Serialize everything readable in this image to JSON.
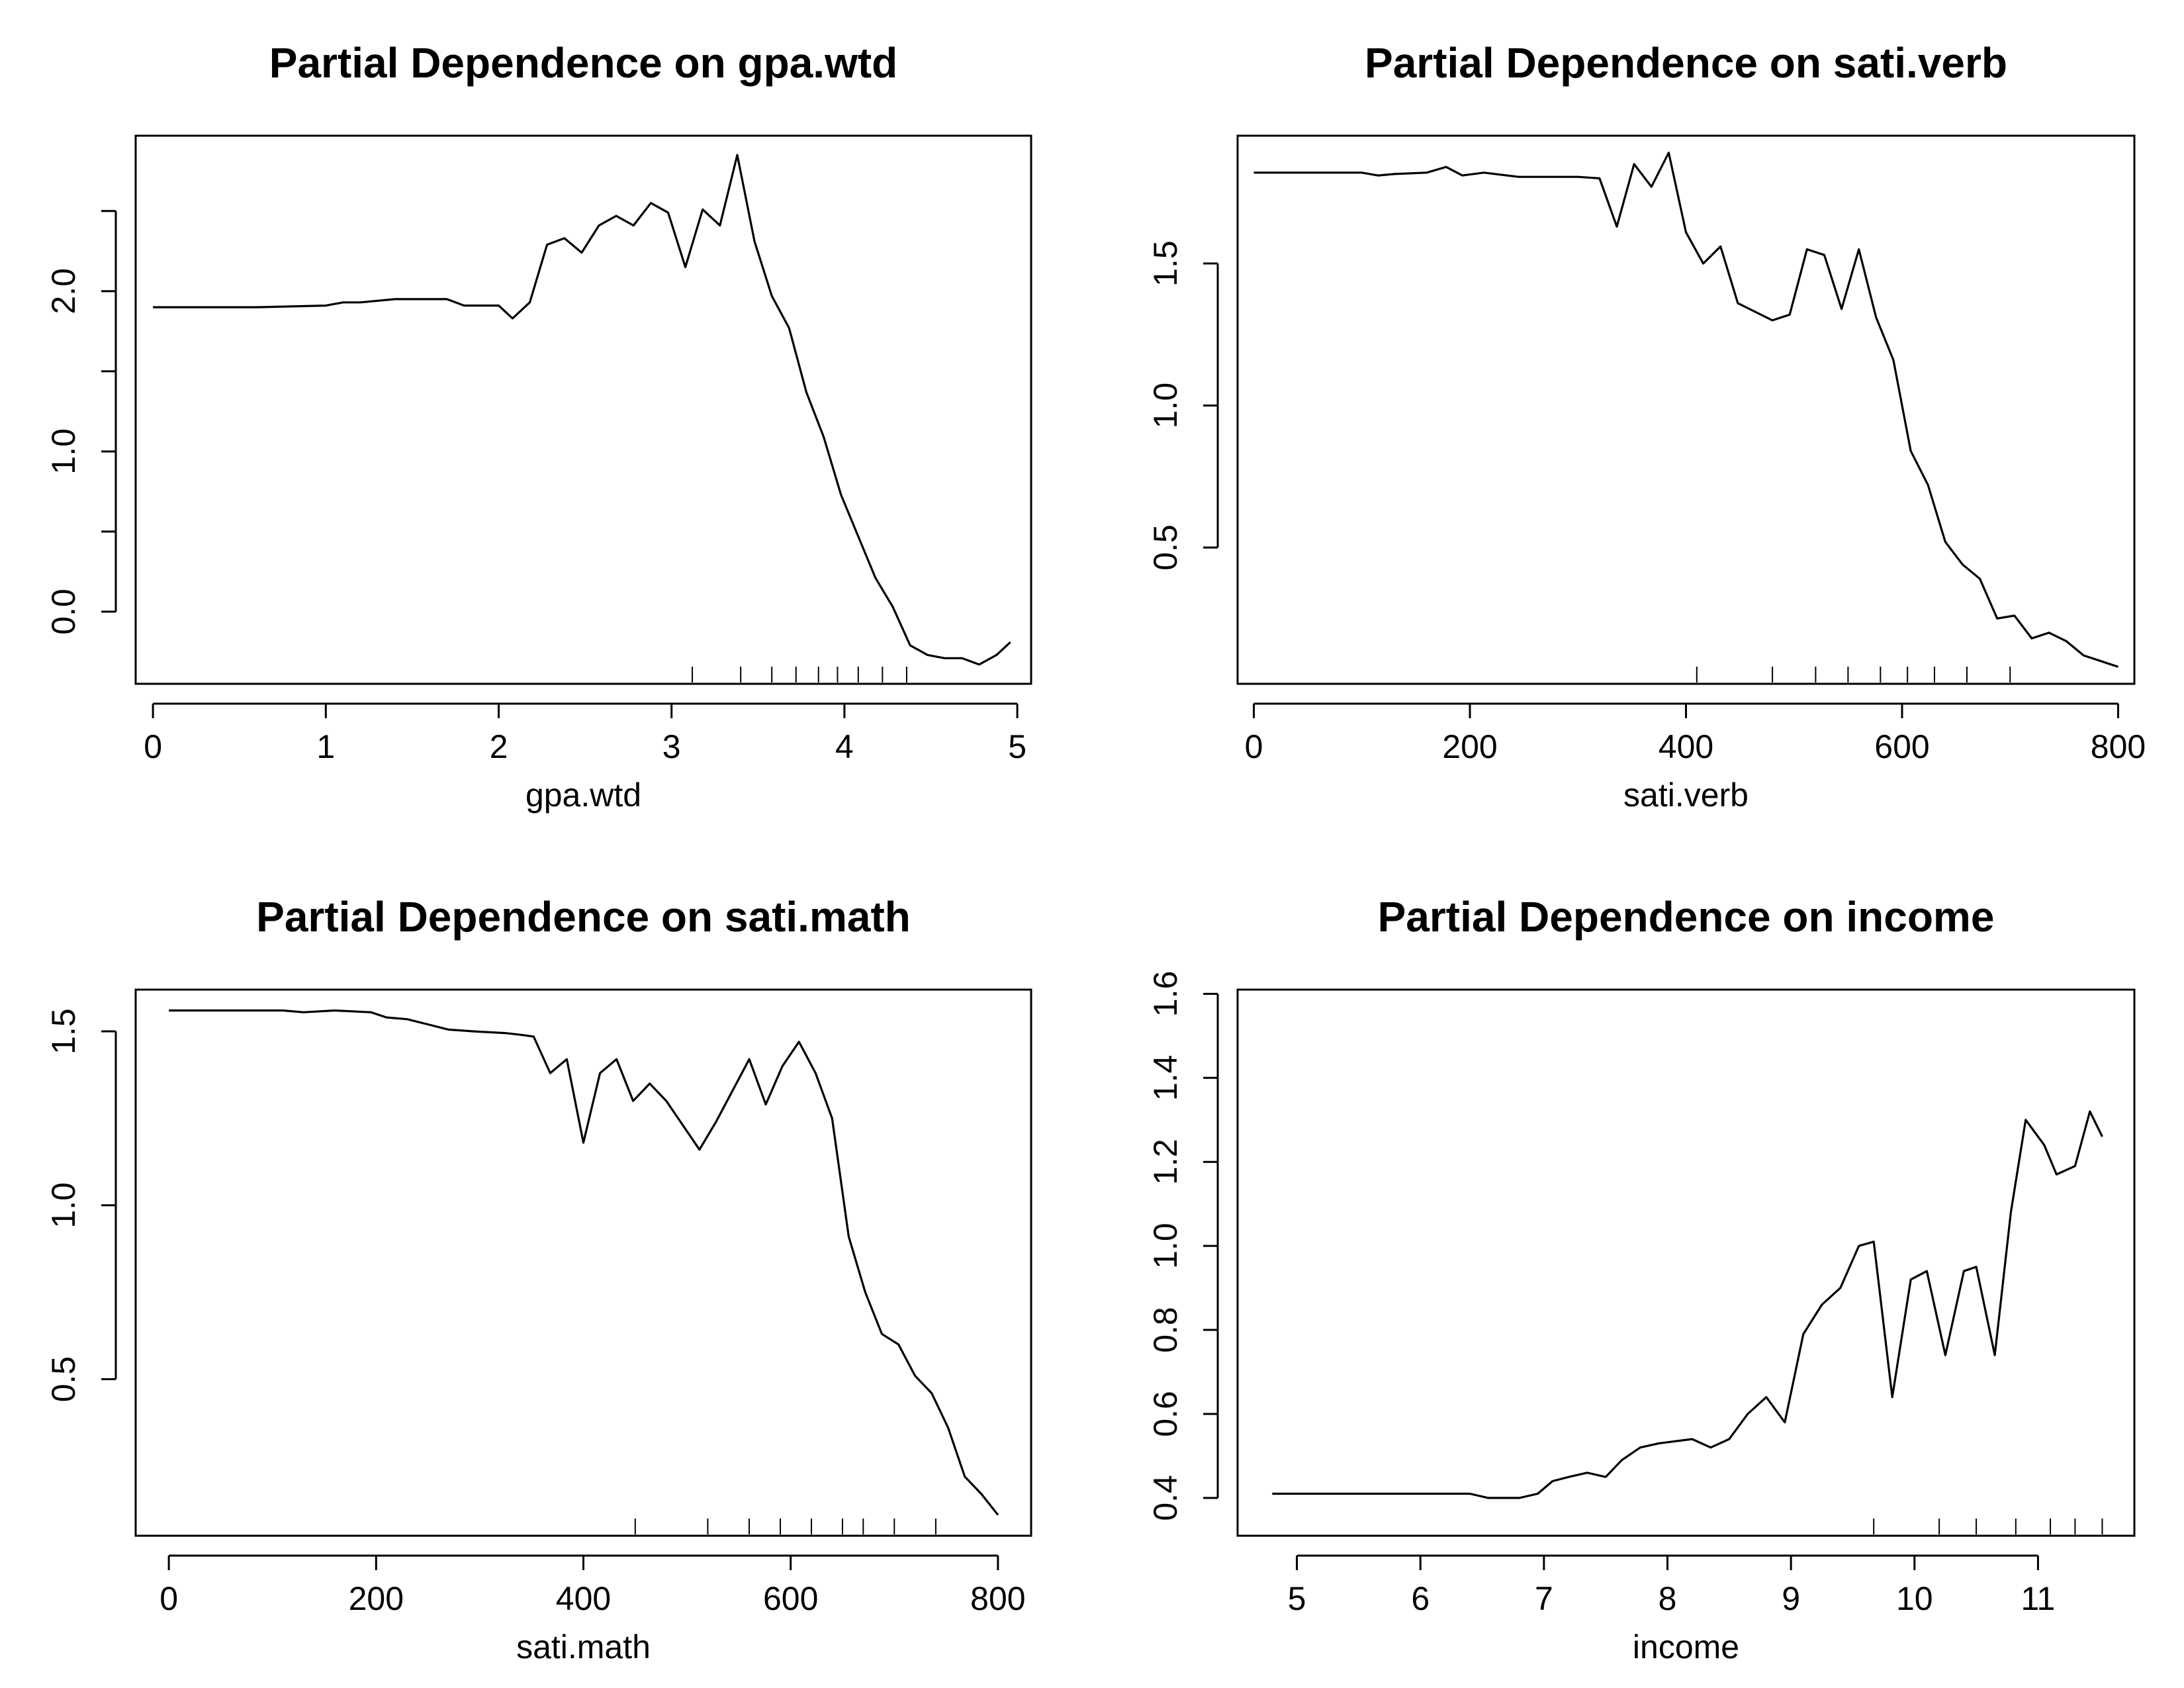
{
  "chart_data": [
    {
      "type": "line",
      "title": "Partial Dependence on gpa.wtd",
      "xlabel": "gpa.wtd",
      "ylabel": "",
      "xlim": [
        -0.1,
        5.08
      ],
      "ylim": [
        -0.45,
        2.97
      ],
      "xticks": [
        0,
        1,
        2,
        3,
        4,
        5
      ],
      "xtick_labels": [
        "0",
        "1",
        "2",
        "3",
        "4",
        "5"
      ],
      "yticks": [
        0.0,
        0.5,
        1.0,
        1.5,
        2.0,
        2.5
      ],
      "ytick_labels": [
        "0.0",
        "",
        "1.0",
        "",
        "2.0",
        ""
      ],
      "x": [
        0,
        0.6,
        1.0,
        1.1,
        1.2,
        1.4,
        1.7,
        1.8,
        2.0,
        2.08,
        2.18,
        2.28,
        2.38,
        2.48,
        2.58,
        2.68,
        2.78,
        2.88,
        2.98,
        3.08,
        3.18,
        3.28,
        3.38,
        3.48,
        3.58,
        3.68,
        3.78,
        3.88,
        3.98,
        4.08,
        4.18,
        4.28,
        4.38,
        4.48,
        4.58,
        4.68,
        4.78,
        4.88,
        4.96
      ],
      "y": [
        1.9,
        1.9,
        1.91,
        1.93,
        1.93,
        1.95,
        1.95,
        1.91,
        1.91,
        1.83,
        1.93,
        2.29,
        2.33,
        2.24,
        2.41,
        2.47,
        2.41,
        2.55,
        2.49,
        2.15,
        2.51,
        2.41,
        2.85,
        2.31,
        1.97,
        1.77,
        1.37,
        1.09,
        0.73,
        0.47,
        0.21,
        0.03,
        -0.21,
        -0.27,
        -0.29,
        -0.29,
        -0.33,
        -0.27,
        -0.19
      ],
      "rug": [
        3.12,
        3.4,
        3.58,
        3.72,
        3.85,
        3.96,
        4.08,
        4.22,
        4.36
      ]
    },
    {
      "type": "line",
      "title": "Partial Dependence on sati.verb",
      "xlabel": "sati.verb",
      "ylabel": "",
      "xlim": [
        -15,
        815
      ],
      "ylim": [
        0.02,
        1.95
      ],
      "xticks": [
        0,
        200,
        400,
        600,
        800
      ],
      "xtick_labels": [
        "0",
        "200",
        "400",
        "600",
        "800"
      ],
      "yticks": [
        0.5,
        1.0,
        1.5
      ],
      "ytick_labels": [
        "0.5",
        "1.0",
        "1.5"
      ],
      "x": [
        0,
        50,
        100,
        115,
        130,
        160,
        178,
        193,
        213,
        245,
        280,
        300,
        320,
        336,
        352,
        368,
        384,
        400,
        416,
        432,
        448,
        464,
        480,
        496,
        512,
        528,
        544,
        560,
        576,
        592,
        608,
        624,
        640,
        656,
        672,
        688,
        704,
        720,
        736,
        752,
        768,
        784,
        800
      ],
      "y": [
        1.82,
        1.82,
        1.82,
        1.81,
        1.815,
        1.82,
        1.84,
        1.81,
        1.82,
        1.805,
        1.805,
        1.805,
        1.8,
        1.63,
        1.85,
        1.77,
        1.89,
        1.61,
        1.5,
        1.56,
        1.36,
        1.33,
        1.3,
        1.32,
        1.55,
        1.53,
        1.34,
        1.55,
        1.31,
        1.16,
        0.84,
        0.72,
        0.52,
        0.44,
        0.39,
        0.25,
        0.26,
        0.18,
        0.2,
        0.17,
        0.12,
        0.1,
        0.08
      ],
      "rug": [
        410,
        480,
        520,
        550,
        580,
        605,
        630,
        660,
        700
      ]
    },
    {
      "type": "line",
      "title": "Partial Dependence on sati.math",
      "xlabel": "sati.math",
      "ylabel": "",
      "xlim": [
        -32,
        832
      ],
      "ylim": [
        0.05,
        1.62
      ],
      "xticks": [
        0,
        200,
        400,
        600,
        800
      ],
      "xtick_labels": [
        "0",
        "200",
        "400",
        "600",
        "800"
      ],
      "yticks": [
        0.5,
        1.0,
        1.5
      ],
      "ytick_labels": [
        "0.5",
        "1.0",
        "1.5"
      ],
      "x": [
        0,
        60,
        110,
        130,
        160,
        195,
        210,
        230,
        250,
        270,
        295,
        325,
        340,
        352,
        368,
        384,
        400,
        416,
        432,
        448,
        464,
        480,
        496,
        512,
        528,
        544,
        560,
        576,
        592,
        608,
        624,
        640,
        656,
        672,
        688,
        704,
        720,
        736,
        752,
        768,
        784,
        800
      ],
      "y": [
        1.56,
        1.56,
        1.56,
        1.555,
        1.56,
        1.555,
        1.54,
        1.535,
        1.52,
        1.505,
        1.5,
        1.495,
        1.49,
        1.485,
        1.38,
        1.42,
        1.18,
        1.38,
        1.42,
        1.3,
        1.35,
        1.3,
        1.23,
        1.16,
        1.24,
        1.33,
        1.42,
        1.29,
        1.4,
        1.47,
        1.38,
        1.25,
        0.91,
        0.75,
        0.63,
        0.6,
        0.51,
        0.46,
        0.36,
        0.22,
        0.17,
        0.11
      ],
      "rug": [
        450,
        520,
        560,
        590,
        620,
        650,
        670,
        700,
        740
      ]
    },
    {
      "type": "line",
      "title": "Partial Dependence on income",
      "xlabel": "income",
      "ylabel": "",
      "xlim": [
        4.52,
        11.78
      ],
      "ylim": [
        0.31,
        1.61
      ],
      "xticks": [
        5,
        6,
        7,
        8,
        9,
        10,
        11
      ],
      "xtick_labels": [
        "5",
        "6",
        "7",
        "8",
        "9",
        "10",
        "11"
      ],
      "yticks": [
        0.4,
        0.6,
        0.8,
        1.0,
        1.2,
        1.4,
        1.6
      ],
      "ytick_labels": [
        "0.4",
        "0.6",
        "0.8",
        "1.0",
        "1.2",
        "1.4",
        "1.6"
      ],
      "x": [
        4.8,
        6.2,
        6.4,
        6.55,
        6.8,
        6.95,
        7.07,
        7.2,
        7.35,
        7.5,
        7.63,
        7.78,
        7.93,
        8.2,
        8.35,
        8.5,
        8.65,
        8.8,
        8.95,
        9.1,
        9.25,
        9.4,
        9.55,
        9.67,
        9.82,
        9.97,
        10.1,
        10.25,
        10.4,
        10.5,
        10.65,
        10.78,
        10.9,
        11.05,
        11.15,
        11.3,
        11.42,
        11.52
      ],
      "y": [
        0.41,
        0.41,
        0.41,
        0.4,
        0.4,
        0.41,
        0.44,
        0.45,
        0.46,
        0.45,
        0.49,
        0.52,
        0.53,
        0.54,
        0.52,
        0.54,
        0.6,
        0.64,
        0.58,
        0.79,
        0.86,
        0.9,
        1.0,
        1.01,
        0.64,
        0.92,
        0.94,
        0.74,
        0.94,
        0.95,
        0.74,
        1.08,
        1.3,
        1.24,
        1.17,
        1.19,
        1.32,
        1.26
      ],
      "rug": [
        9.67,
        10.2,
        10.5,
        10.82,
        11.1,
        11.3,
        11.52
      ]
    }
  ]
}
